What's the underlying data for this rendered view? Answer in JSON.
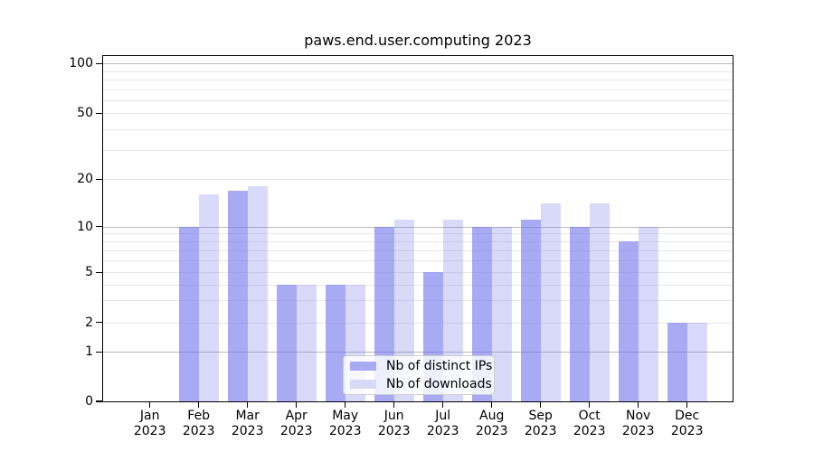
{
  "title": "paws.end.user.computing 2023",
  "chart_data": {
    "type": "bar",
    "title": "paws.end.user.computing 2023",
    "categories": [
      "Jan 2023",
      "Feb 2023",
      "Mar 2023",
      "Apr 2023",
      "May 2023",
      "Jun 2023",
      "Jul 2023",
      "Aug 2023",
      "Sep 2023",
      "Oct 2023",
      "Nov 2023",
      "Dec 2023"
    ],
    "series": [
      {
        "name": "Nb of distinct IPs",
        "values": [
          0,
          10,
          17,
          4,
          4,
          10,
          5,
          10,
          11,
          10,
          8,
          2
        ],
        "bar_color": "rgba(115,118,237,0.62)",
        "legend_color": "#a8aaf4"
      },
      {
        "name": "Nb of downloads",
        "values": [
          0,
          16,
          18,
          4,
          4,
          11,
          11,
          10,
          14,
          14,
          10,
          2
        ],
        "bar_color": "rgba(115,118,237,0.27)",
        "legend_color": "#d9daf8"
      }
    ],
    "xlabel": "",
    "ylabel": "",
    "yscale": "symlog",
    "ylim": [
      0,
      100
    ],
    "y_tick_values": [
      0,
      1,
      2,
      5,
      10,
      20,
      50,
      100
    ],
    "y_major_gridlines": [
      1,
      10,
      100
    ],
    "y_minor_gridlines": [
      2,
      3,
      4,
      5,
      6,
      7,
      8,
      9,
      20,
      30,
      40,
      50,
      60,
      70,
      80,
      90
    ],
    "grid": "horizontal",
    "legend_position": "lower center",
    "colors": {
      "major_grid": "#b9b9b9",
      "minor_grid": "#e7e7e7",
      "spine": "#000000",
      "text": "#000000",
      "background": "#ffffff"
    }
  }
}
